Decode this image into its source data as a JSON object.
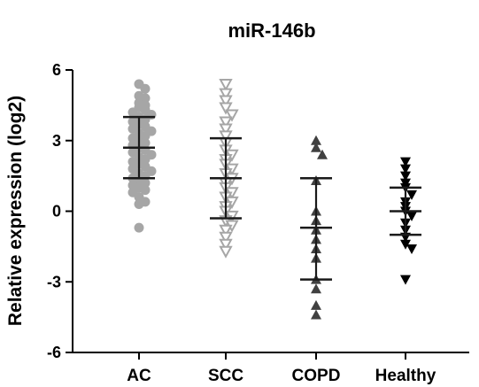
{
  "chart_data": {
    "type": "scatter",
    "title": "miR-146b",
    "ylabel": "Relative expression (log2)",
    "ylim": [
      -6,
      6
    ],
    "yticks": [
      "6",
      "3",
      "0",
      "-3",
      "-6"
    ],
    "categories": [
      "AC",
      "SCC",
      "COPD",
      "Healthy"
    ],
    "grid": false,
    "series": [
      {
        "category": "AC",
        "marker": "circle",
        "color": "#a6a6a6",
        "mean": 2.7,
        "sd_upper": 4.0,
        "sd_lower": 1.4,
        "values": [
          5.4,
          5.2,
          4.9,
          4.8,
          4.6,
          4.5,
          4.4,
          4.3,
          4.2,
          4.1,
          4.0,
          3.9,
          3.8,
          3.7,
          3.6,
          3.5,
          3.4,
          3.3,
          3.2,
          3.1,
          3.0,
          2.9,
          2.8,
          2.7,
          2.6,
          2.5,
          2.4,
          2.3,
          2.2,
          2.1,
          2.0,
          1.9,
          1.8,
          1.7,
          1.6,
          1.5,
          1.4,
          1.3,
          1.2,
          1.1,
          1.0,
          0.9,
          0.8,
          0.6,
          0.4,
          0.3,
          -0.7
        ]
      },
      {
        "category": "SCC",
        "marker": "triangle-down-open",
        "color": "#a6a6a6",
        "mean": 1.4,
        "sd_upper": 3.1,
        "sd_lower": -0.3,
        "values": [
          5.4,
          5.0,
          4.7,
          4.4,
          4.1,
          3.8,
          3.5,
          3.2,
          2.9,
          2.6,
          2.4,
          2.2,
          2.0,
          1.8,
          1.6,
          1.4,
          1.2,
          1.0,
          0.8,
          0.6,
          0.4,
          0.2,
          0.0,
          -0.2,
          -0.4,
          -0.6,
          -0.8,
          -1.1,
          -1.4,
          -1.7
        ]
      },
      {
        "category": "COPD",
        "marker": "triangle-up",
        "color": "#404040",
        "mean": -0.7,
        "sd_upper": 1.4,
        "sd_lower": -2.9,
        "values": [
          3.0,
          2.7,
          2.4,
          1.3,
          0.0,
          -0.4,
          -0.8,
          -1.2,
          -1.6,
          -2.0,
          -2.9,
          -3.3,
          -4.0,
          -4.4
        ]
      },
      {
        "category": "Healthy",
        "marker": "triangle-down",
        "color": "#000000",
        "mean": 0.0,
        "sd_upper": 1.0,
        "sd_lower": -1.0,
        "values": [
          2.1,
          1.8,
          1.5,
          1.2,
          1.0,
          0.7,
          0.4,
          0.2,
          0.0,
          -0.2,
          -0.5,
          -0.8,
          -1.1,
          -1.4,
          -1.6,
          -2.9
        ]
      }
    ]
  }
}
